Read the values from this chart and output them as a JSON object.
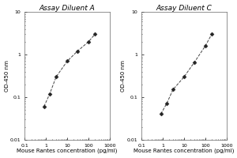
{
  "plot1": {
    "title": "Assay Diluent A",
    "x": [
      0.8,
      1.5,
      3,
      10,
      30,
      100,
      200
    ],
    "y": [
      0.06,
      0.12,
      0.3,
      0.7,
      1.2,
      2.0,
      3.0
    ],
    "xlabel": "Mouse Rantes concentration (pg/ml)",
    "ylabel": "OD-450 nm"
  },
  "plot2": {
    "title": "Assay Diluent C",
    "x": [
      0.8,
      1.5,
      3,
      10,
      30,
      100,
      200
    ],
    "y": [
      0.04,
      0.07,
      0.15,
      0.3,
      0.65,
      1.6,
      3.0
    ],
    "xlabel": "Mouse Rantes concentration (pg/ml)",
    "ylabel": "OD-450 nm"
  },
  "xlim": [
    0.1,
    1000
  ],
  "ylim": [
    0.01,
    10
  ],
  "xticks": [
    0.1,
    1,
    10,
    100,
    1000
  ],
  "yticks": [
    0.01,
    0.1,
    1,
    10
  ],
  "xtick_labels": [
    "0.1",
    "1",
    "10",
    "100",
    "1000"
  ],
  "ytick_labels": [
    "0.01",
    "0.1",
    "1",
    "10"
  ],
  "line_color": "#444444",
  "marker": "D",
  "markersize": 2.5,
  "marker_color": "#222222",
  "linestyle": "--",
  "linewidth": 0.7,
  "title_fontsize": 6.5,
  "label_fontsize": 5,
  "tick_fontsize": 4.5,
  "bg_color": "#ffffff"
}
